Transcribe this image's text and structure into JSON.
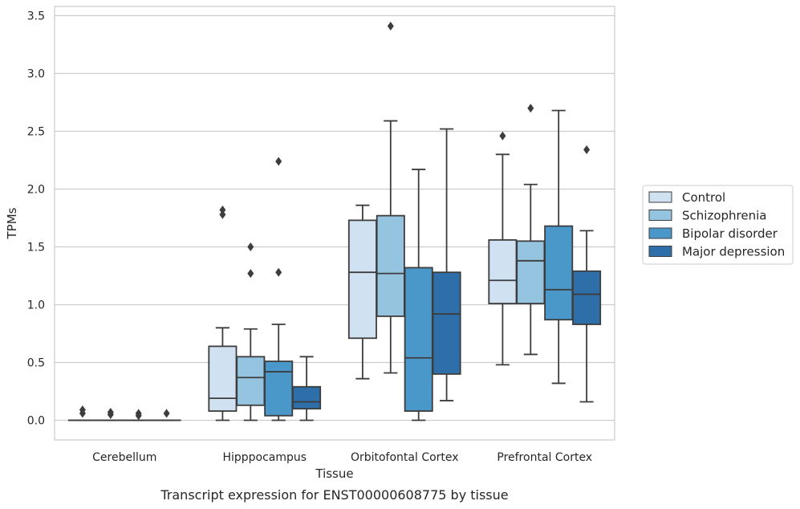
{
  "chart_data": {
    "type": "boxplot",
    "caption": "Transcript expression for ENST00000608775 by tissue",
    "xlabel": "Tissue",
    "ylabel": "TPMs",
    "ylim": [
      -0.17,
      3.58
    ],
    "yticks": [
      0.0,
      0.5,
      1.0,
      1.5,
      2.0,
      2.5,
      3.0,
      3.5
    ],
    "ytick_labels": [
      "0.0",
      "0.5",
      "1.0",
      "1.5",
      "2.0",
      "2.5",
      "3.0",
      "3.5"
    ],
    "grid": "horizontal",
    "legend_position": "right",
    "categories": [
      "Cerebellum",
      "Hipppocampus",
      "Orbitofontal Cortex",
      "Prefrontal Cortex"
    ],
    "series": [
      {
        "name": "Control",
        "color": "#d0e1f2",
        "boxes": [
          {
            "whislo": 0.0,
            "q1": 0.0,
            "med": 0.0,
            "q3": 0.0,
            "whishi": 0.0,
            "fliers": [
              0.06,
              0.09
            ]
          },
          {
            "whislo": 0.0,
            "q1": 0.08,
            "med": 0.19,
            "q3": 0.64,
            "whishi": 0.8,
            "fliers": [
              1.78,
              1.82
            ]
          },
          {
            "whislo": 0.36,
            "q1": 0.71,
            "med": 1.28,
            "q3": 1.73,
            "whishi": 1.86,
            "fliers": []
          },
          {
            "whislo": 0.48,
            "q1": 1.01,
            "med": 1.21,
            "q3": 1.56,
            "whishi": 2.3,
            "fliers": [
              2.46
            ]
          }
        ]
      },
      {
        "name": "Schizophrenia",
        "color": "#94c4df",
        "boxes": [
          {
            "whislo": 0.0,
            "q1": 0.0,
            "med": 0.0,
            "q3": 0.0,
            "whishi": 0.0,
            "fliers": [
              0.05,
              0.07
            ]
          },
          {
            "whislo": 0.0,
            "q1": 0.13,
            "med": 0.37,
            "q3": 0.55,
            "whishi": 0.79,
            "fliers": [
              1.27,
              1.5
            ]
          },
          {
            "whislo": 0.41,
            "q1": 0.9,
            "med": 1.27,
            "q3": 1.77,
            "whishi": 2.59,
            "fliers": [
              3.41
            ]
          },
          {
            "whislo": 0.57,
            "q1": 1.01,
            "med": 1.38,
            "q3": 1.55,
            "whishi": 2.04,
            "fliers": [
              2.7
            ]
          }
        ]
      },
      {
        "name": "Bipolar disorder",
        "color": "#4a98c9",
        "boxes": [
          {
            "whislo": 0.0,
            "q1": 0.0,
            "med": 0.0,
            "q3": 0.0,
            "whishi": 0.0,
            "fliers": [
              0.04,
              0.06
            ]
          },
          {
            "whislo": 0.0,
            "q1": 0.04,
            "med": 0.42,
            "q3": 0.51,
            "whishi": 0.83,
            "fliers": [
              1.28,
              2.24
            ]
          },
          {
            "whislo": 0.0,
            "q1": 0.08,
            "med": 0.54,
            "q3": 1.32,
            "whishi": 2.17,
            "fliers": []
          },
          {
            "whislo": 0.32,
            "q1": 0.87,
            "med": 1.13,
            "q3": 1.68,
            "whishi": 2.68,
            "fliers": []
          }
        ]
      },
      {
        "name": "Major depression",
        "color": "#2e6ea9",
        "boxes": [
          {
            "whislo": 0.0,
            "q1": 0.0,
            "med": 0.0,
            "q3": 0.0,
            "whishi": 0.0,
            "fliers": [
              0.06
            ]
          },
          {
            "whislo": 0.0,
            "q1": 0.1,
            "med": 0.16,
            "q3": 0.29,
            "whishi": 0.55,
            "fliers": []
          },
          {
            "whislo": 0.17,
            "q1": 0.4,
            "med": 0.92,
            "q3": 1.28,
            "whishi": 2.52,
            "fliers": []
          },
          {
            "whislo": 0.16,
            "q1": 0.83,
            "med": 1.09,
            "q3": 1.29,
            "whishi": 1.64,
            "fliers": [
              2.34
            ]
          }
        ]
      }
    ]
  }
}
